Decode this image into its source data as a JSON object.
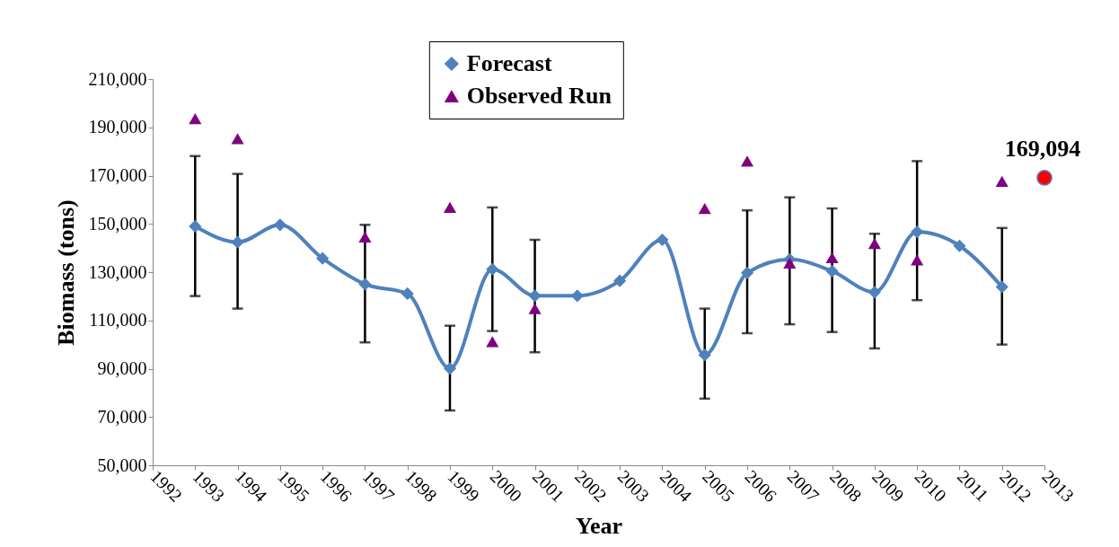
{
  "chart_data": {
    "type": "line",
    "xlabel": "Year",
    "ylabel": "Biomass (tons)",
    "xlim": [
      1992,
      2013
    ],
    "xticks": [
      1992,
      1993,
      1994,
      1995,
      1996,
      1997,
      1998,
      1999,
      2000,
      2001,
      2002,
      2003,
      2004,
      2005,
      2006,
      2007,
      2008,
      2009,
      2010,
      2011,
      2012,
      2013
    ],
    "ylim": [
      50000,
      210000
    ],
    "yticks": [
      {
        "value": 50000,
        "label": "50,000"
      },
      {
        "value": 70000,
        "label": "70,000"
      },
      {
        "value": 90000,
        "label": "90,000"
      },
      {
        "value": 110000,
        "label": "110,000"
      },
      {
        "value": 130000,
        "label": "130,000"
      },
      {
        "value": 150000,
        "label": "150,000"
      },
      {
        "value": 170000,
        "label": "170,000"
      },
      {
        "value": 190000,
        "label": "190,000"
      },
      {
        "value": 210000,
        "label": "210,000"
      }
    ],
    "legend": "top",
    "series": [
      {
        "name": "Forecast",
        "marker": "diamond",
        "color": "#4f81bd",
        "x": [
          1993,
          1994,
          1995,
          1996,
          1997,
          1998,
          1999,
          2000,
          2001,
          2002,
          2003,
          2004,
          2005,
          2006,
          2007,
          2008,
          2009,
          2010,
          2011,
          2012
        ],
        "values": [
          149000,
          142400,
          149600,
          135700,
          125000,
          121100,
          90100,
          131200,
          120200,
          120200,
          126400,
          143400,
          95700,
          129700,
          135300,
          130400,
          121700,
          146700,
          140900,
          123900
        ],
        "errors": [
          [
            120100,
            178100
          ],
          [
            114900,
            170700
          ],
          null,
          null,
          [
            100900,
            149600
          ],
          null,
          [
            72700,
            107800
          ],
          [
            105600,
            156800
          ],
          [
            96800,
            143400
          ],
          null,
          null,
          null,
          [
            77600,
            114900
          ],
          [
            104700,
            155600
          ],
          [
            108400,
            161000
          ],
          [
            105200,
            156400
          ],
          [
            98400,
            145900
          ],
          [
            118400,
            176000
          ],
          null,
          [
            100000,
            148300
          ]
        ]
      },
      {
        "name": "Observed Run",
        "type": "scatter",
        "marker": "triangle",
        "color": "#800080",
        "x": [
          1993,
          1994,
          1997,
          1999,
          2000,
          2001,
          2005,
          2006,
          2007,
          2008,
          2009,
          2010,
          2012
        ],
        "values": [
          193600,
          185300,
          144600,
          156800,
          101200,
          114900,
          156400,
          176000,
          133800,
          136000,
          141900,
          135100,
          167600
        ]
      },
      {
        "type": "scatter",
        "marker": "circle",
        "color": "#ff0000",
        "x": [
          2013
        ],
        "values": [
          169094
        ],
        "value_labels": [
          "169,094"
        ]
      }
    ]
  }
}
